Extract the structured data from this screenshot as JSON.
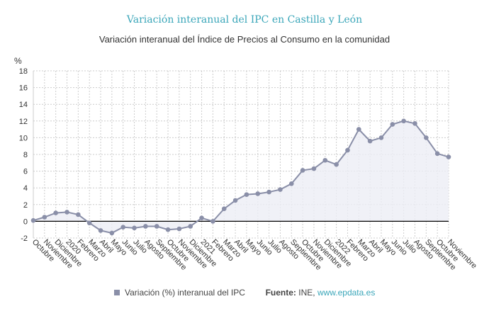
{
  "chart_data": {
    "type": "area",
    "title": "Variación interanual del IPC en Castilla y León",
    "subtitle": "Variación interanual del Índice de Precios al Consumo en la comunidad",
    "ylabel": "%",
    "ylim": [
      -2,
      18
    ],
    "yticks": [
      -2,
      0,
      2,
      4,
      6,
      8,
      10,
      12,
      14,
      16,
      18
    ],
    "grid": true,
    "legend_position": "bottom",
    "colors": {
      "line": "#8a8fa8",
      "fill": "#eceef5",
      "zero_line": "#000000",
      "grid": "#cccccc"
    },
    "categories": [
      "Octubre",
      "Noviembre",
      "Diciembre",
      "2020",
      "Febrero",
      "Marzo",
      "Abril",
      "Mayo",
      "Junio",
      "Julio",
      "Agosto",
      "Septiembre",
      "Octubre",
      "Noviembre",
      "Diciembre",
      "2021",
      "Febrero",
      "Marzo",
      "Abril",
      "Mayo",
      "Junio",
      "Julio",
      "Agosto",
      "Septiembre",
      "Octubre",
      "Noviembre",
      "Diciembre",
      "2022",
      "Febrero",
      "Marzo",
      "Abril",
      "Mayo",
      "Junio",
      "Julio",
      "Agosto",
      "Septiembre",
      "Octubre",
      "Noviembre"
    ],
    "series": [
      {
        "name": "Variación (%) interanual del IPC",
        "values": [
          0.1,
          0.5,
          1.0,
          1.1,
          0.8,
          -0.2,
          -1.1,
          -1.4,
          -0.7,
          -0.8,
          -0.6,
          -0.6,
          -1.0,
          -0.9,
          -0.6,
          0.4,
          0.0,
          1.5,
          2.5,
          3.2,
          3.3,
          3.5,
          3.8,
          4.5,
          6.1,
          6.3,
          7.3,
          6.8,
          8.5,
          11.0,
          9.6,
          10.0,
          11.6,
          12.0,
          11.7,
          10.0,
          8.1,
          7.7
        ]
      }
    ]
  },
  "legend": {
    "series_label": "Variación (%) interanual del IPC",
    "source_label": "Fuente:",
    "source_text": "INE,",
    "source_link": "www.epdata.es"
  }
}
